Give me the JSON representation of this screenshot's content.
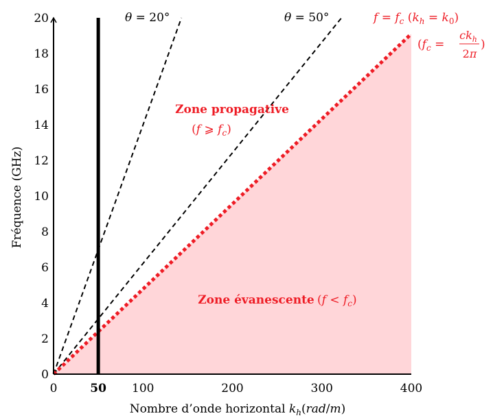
{
  "chart_data": {
    "type": "line",
    "xlabel": "Nombre d’onde horizontal k_h(rad/m)",
    "ylabel": "Fréquence (GHz)",
    "xlim": [
      0,
      400
    ],
    "ylim": [
      0,
      20
    ],
    "x_ticks": [
      "0",
      "100",
      "200",
      "300",
      "400"
    ],
    "y_ticks": [
      "0",
      "2",
      "4",
      "6",
      "8",
      "10",
      "12",
      "14",
      "16",
      "18",
      "20"
    ],
    "special_x_tick": "50",
    "grid": false,
    "series": [
      {
        "name": "θ = 20°",
        "style": "dashed",
        "color": "#000000",
        "x": [
          0,
          143
        ],
        "y": [
          0,
          20
        ]
      },
      {
        "name": "θ = 50°",
        "style": "dashed",
        "color": "#000000",
        "x": [
          0,
          322
        ],
        "y": [
          0,
          20
        ]
      },
      {
        "name": "f = f_c (k_h = k_0)",
        "style": "dotted-thick",
        "color": "#ee1c25",
        "x": [
          0,
          400
        ],
        "y": [
          0,
          19.1
        ]
      }
    ],
    "vertical_line": {
      "x": 50,
      "color": "#000000"
    },
    "shaded_region": {
      "label": "Zone évanescente",
      "color": "#ffd6d9",
      "below_series": 2
    },
    "annotations": {
      "theta20": "θ = 20°",
      "theta50": "θ = 50°",
      "fc_line": "f = f_c (k_h = k_0)",
      "fc_formula": "(f_c = ck_h / 2π)",
      "propagative_title": "Zone propagative",
      "propagative_cond": "(f ⩾ f_c)",
      "evanescent_title": "Zone évanescente",
      "evanescent_cond": "(f < f_c)"
    }
  }
}
